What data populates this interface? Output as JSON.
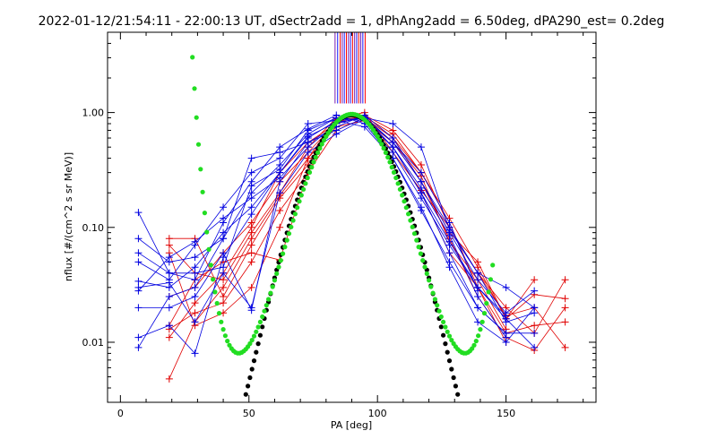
{
  "chart_data": {
    "type": "line",
    "title": "2022-01-12/21:54:11 - 22:00:13 UT, dSectr2add = 1, dPhAng2add = 6.50deg, dPA290_est=   0.2deg",
    "xlabel": "PA [deg]",
    "ylabel": "nflux [#/(cm^2 s sr MeV)]",
    "xlim": [
      -5,
      185
    ],
    "ylim": [
      0.003,
      5.0
    ],
    "yscale": "log",
    "grid": false,
    "xticks": [
      {
        "v": 0,
        "label": "0"
      },
      {
        "v": 50,
        "label": "50"
      },
      {
        "v": 100,
        "label": "100"
      },
      {
        "v": 150,
        "label": "150"
      }
    ],
    "yticks": [
      {
        "v": 0.01,
        "label": "0.01"
      },
      {
        "v": 0.1,
        "label": "0.10"
      },
      {
        "v": 1.0,
        "label": "1.00"
      }
    ],
    "colors": {
      "red_series": "#e00000",
      "blue_series": "#0000e0",
      "black_fit": "#000000",
      "green_fit": "#22dd22",
      "top_markers_purple": "#7a1fb0",
      "top_markers_blue": "#1a1aff",
      "top_markers_red": "#ff0000"
    },
    "pa_bins": [
      7,
      19,
      29,
      40,
      51,
      62,
      73,
      84,
      95,
      106,
      117,
      128,
      139,
      150,
      161,
      173
    ],
    "top_markers_x": [
      83.5,
      84.5,
      85.5,
      86.3,
      87.1,
      87.9,
      88.7,
      89.5,
      90.3,
      91.1,
      91.9,
      92.7,
      93.5,
      94.3,
      95.2
    ],
    "series": [
      {
        "color": "red",
        "x": [
          19,
          29,
          40,
          51,
          62,
          73,
          84,
          95,
          106,
          117,
          128,
          139,
          150,
          161,
          173
        ],
        "y": [
          0.013,
          0.018,
          0.022,
          0.05,
          0.14,
          0.3,
          0.7,
          0.9,
          0.6,
          0.3,
          0.11,
          0.03,
          0.012,
          0.014,
          0.015
        ]
      },
      {
        "color": "red",
        "x": [
          19,
          29,
          40,
          51,
          62,
          73,
          84,
          95,
          106,
          117,
          128,
          139,
          150,
          161,
          173
        ],
        "y": [
          0.025,
          0.03,
          0.06,
          0.11,
          0.25,
          0.45,
          0.82,
          0.95,
          0.7,
          0.35,
          0.1,
          0.04,
          0.017,
          0.02,
          0.009
        ]
      },
      {
        "color": "red",
        "x": [
          19,
          29,
          40,
          51,
          62,
          73,
          84,
          95,
          106,
          117,
          128,
          139,
          150,
          161,
          173
        ],
        "y": [
          0.0048,
          0.015,
          0.03,
          0.08,
          0.19,
          0.4,
          0.75,
          0.85,
          0.55,
          0.25,
          0.08,
          0.025,
          0.011,
          0.0085,
          0.02
        ]
      },
      {
        "color": "red",
        "x": [
          19,
          29,
          40,
          51,
          62,
          73,
          84,
          95,
          106,
          117,
          128,
          139,
          150,
          161
        ],
        "y": [
          0.07,
          0.04,
          0.035,
          0.09,
          0.2,
          0.5,
          0.9,
          0.95,
          0.6,
          0.25,
          0.09,
          0.05,
          0.016,
          0.035
        ]
      },
      {
        "color": "red",
        "x": [
          19,
          29,
          40,
          51,
          62,
          73,
          84,
          95,
          106,
          117,
          128,
          139,
          150
        ],
        "y": [
          0.08,
          0.08,
          0.025,
          0.07,
          0.18,
          0.35,
          0.85,
          0.9,
          0.5,
          0.2,
          0.06,
          0.03,
          0.01
        ]
      },
      {
        "color": "red",
        "x": [
          19,
          29,
          40,
          51,
          62,
          73,
          84,
          95,
          106,
          117,
          128,
          139,
          150,
          161,
          173
        ],
        "y": [
          0.014,
          0.035,
          0.05,
          0.06,
          0.052,
          0.3,
          0.9,
          1.0,
          0.45,
          0.21,
          0.1,
          0.04,
          0.02,
          0.012,
          0.035
        ]
      },
      {
        "color": "red",
        "x": [
          19,
          29,
          40,
          51,
          62,
          73,
          84,
          95,
          106,
          117,
          128,
          139,
          150,
          161,
          173
        ],
        "y": [
          0.011,
          0.022,
          0.04,
          0.1,
          0.3,
          0.55,
          0.8,
          0.92,
          0.65,
          0.3,
          0.12,
          0.045,
          0.016,
          0.026,
          0.024
        ]
      },
      {
        "color": "red",
        "x": [
          19,
          29,
          40,
          51,
          62,
          73,
          84,
          95,
          106,
          117,
          128,
          139,
          150
        ],
        "y": [
          0.06,
          0.014,
          0.018,
          0.03,
          0.1,
          0.4,
          0.88,
          0.9,
          0.55,
          0.28,
          0.075,
          0.035,
          0.013
        ]
      },
      {
        "color": "blue",
        "x": [
          7,
          19,
          29,
          40,
          51,
          62,
          73,
          84,
          95,
          106,
          117,
          128,
          139,
          150,
          161
        ],
        "y": [
          0.034,
          0.03,
          0.045,
          0.09,
          0.15,
          0.3,
          0.6,
          0.85,
          0.9,
          0.5,
          0.2,
          0.06,
          0.02,
          0.012,
          0.012
        ]
      },
      {
        "color": "blue",
        "x": [
          7,
          19,
          29,
          40,
          51,
          62,
          73,
          84,
          95,
          106,
          117,
          128,
          139,
          150,
          161
        ],
        "y": [
          0.08,
          0.05,
          0.055,
          0.08,
          0.2,
          0.35,
          0.65,
          0.9,
          0.85,
          0.45,
          0.18,
          0.07,
          0.03,
          0.016,
          0.009
        ]
      },
      {
        "color": "blue",
        "x": [
          7,
          19,
          29,
          40,
          51,
          62,
          73,
          84,
          95,
          106,
          117,
          128,
          139,
          150,
          161
        ],
        "y": [
          0.06,
          0.04,
          0.035,
          0.11,
          0.25,
          0.5,
          0.72,
          0.95,
          0.8,
          0.4,
          0.15,
          0.045,
          0.015,
          0.01,
          0.02
        ]
      },
      {
        "color": "blue",
        "x": [
          7,
          19,
          29,
          40,
          51,
          62,
          73,
          84,
          95,
          106,
          117,
          128,
          139,
          150,
          161
        ],
        "y": [
          0.02,
          0.02,
          0.025,
          0.06,
          0.019,
          0.25,
          0.55,
          0.75,
          0.95,
          0.6,
          0.25,
          0.09,
          0.035,
          0.018,
          0.028
        ]
      },
      {
        "color": "blue",
        "x": [
          7,
          19,
          29,
          40,
          51,
          62,
          73,
          84,
          95,
          106,
          117,
          128,
          139,
          150
        ],
        "y": [
          0.011,
          0.014,
          0.008,
          0.055,
          0.13,
          0.3,
          0.62,
          0.82,
          0.9,
          0.5,
          0.22,
          0.085,
          0.025,
          0.011
        ]
      },
      {
        "color": "blue",
        "x": [
          7,
          19,
          29,
          40,
          51,
          62,
          73,
          84,
          95,
          106,
          117,
          128,
          139,
          150
        ],
        "y": [
          0.05,
          0.035,
          0.07,
          0.15,
          0.3,
          0.4,
          0.8,
          0.85,
          0.75,
          0.4,
          0.14,
          0.05,
          0.02,
          0.012
        ]
      },
      {
        "color": "blue",
        "x": [
          7,
          19,
          29,
          40,
          51,
          62,
          73,
          84,
          95,
          106,
          117,
          128,
          139,
          150,
          161
        ],
        "y": [
          0.009,
          0.025,
          0.03,
          0.08,
          0.4,
          0.45,
          0.55,
          0.7,
          0.9,
          0.8,
          0.5,
          0.095,
          0.04,
          0.03,
          0.02
        ]
      },
      {
        "color": "blue",
        "x": [
          7,
          19,
          29,
          40,
          51,
          62,
          73,
          84,
          95,
          106,
          117,
          128,
          139,
          150,
          161
        ],
        "y": [
          0.028,
          0.055,
          0.075,
          0.12,
          0.18,
          0.27,
          0.5,
          0.8,
          0.92,
          0.55,
          0.25,
          0.1,
          0.04,
          0.015,
          0.018
        ]
      },
      {
        "color": "blue",
        "x": [
          7,
          19,
          29,
          40,
          51,
          62,
          73,
          84,
          95,
          106,
          117,
          128,
          139,
          150
        ],
        "y": [
          0.135,
          0.04,
          0.04,
          0.045,
          0.23,
          0.32,
          0.7,
          0.9,
          0.85,
          0.5,
          0.2,
          0.075,
          0.03,
          0.017
        ]
      },
      {
        "color": "blue",
        "x": [
          7,
          19,
          29,
          40,
          51,
          62,
          73,
          84,
          95,
          106,
          117,
          128,
          139
        ],
        "y": [
          0.03,
          0.033,
          0.015,
          0.04,
          0.02,
          0.2,
          0.45,
          0.65,
          0.88,
          0.55,
          0.3,
          0.11,
          0.028
        ]
      }
    ],
    "fit_black": {
      "x0": 90,
      "fmax": 0.95,
      "a": 0.17,
      "b": 0.12,
      "c": 0.22,
      "x_from": 20,
      "x_to": 160
    },
    "fit_green": {
      "x0": 90,
      "fmax": 0.97,
      "a": 0.2,
      "b": 0.4,
      "c": 0.4,
      "x_from": 20,
      "x_to": 145
    }
  }
}
